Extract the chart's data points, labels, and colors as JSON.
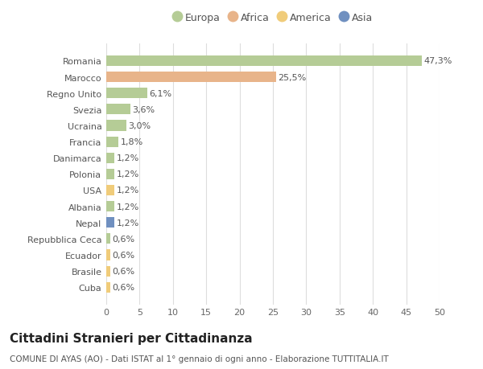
{
  "countries": [
    "Romania",
    "Marocco",
    "Regno Unito",
    "Svezia",
    "Ucraina",
    "Francia",
    "Danimarca",
    "Polonia",
    "USA",
    "Albania",
    "Nepal",
    "Repubblica Ceca",
    "Ecuador",
    "Brasile",
    "Cuba"
  ],
  "values": [
    47.3,
    25.5,
    6.1,
    3.6,
    3.0,
    1.8,
    1.2,
    1.2,
    1.2,
    1.2,
    1.2,
    0.6,
    0.6,
    0.6,
    0.6
  ],
  "labels": [
    "47,3%",
    "25,5%",
    "6,1%",
    "3,6%",
    "3,0%",
    "1,8%",
    "1,2%",
    "1,2%",
    "1,2%",
    "1,2%",
    "1,2%",
    "0,6%",
    "0,6%",
    "0,6%",
    "0,6%"
  ],
  "continents": [
    "Europa",
    "Africa",
    "Europa",
    "Europa",
    "Europa",
    "Europa",
    "Europa",
    "Europa",
    "America",
    "Europa",
    "Asia",
    "Europa",
    "America",
    "America",
    "America"
  ],
  "continent_colors": {
    "Europa": "#b5cc96",
    "Africa": "#e8b48a",
    "America": "#f0cc7a",
    "Asia": "#7090c0"
  },
  "legend_order": [
    "Europa",
    "Africa",
    "America",
    "Asia"
  ],
  "title": "Cittadini Stranieri per Cittadinanza",
  "subtitle": "COMUNE DI AYAS (AO) - Dati ISTAT al 1° gennaio di ogni anno - Elaborazione TUTTITALIA.IT",
  "xlim": [
    0,
    50
  ],
  "xticks": [
    0,
    5,
    10,
    15,
    20,
    25,
    30,
    35,
    40,
    45,
    50
  ],
  "background_color": "#ffffff",
  "grid_color": "#dddddd",
  "bar_height": 0.65,
  "label_fontsize": 8,
  "title_fontsize": 11,
  "subtitle_fontsize": 7.5,
  "tick_fontsize": 8,
  "legend_fontsize": 9
}
